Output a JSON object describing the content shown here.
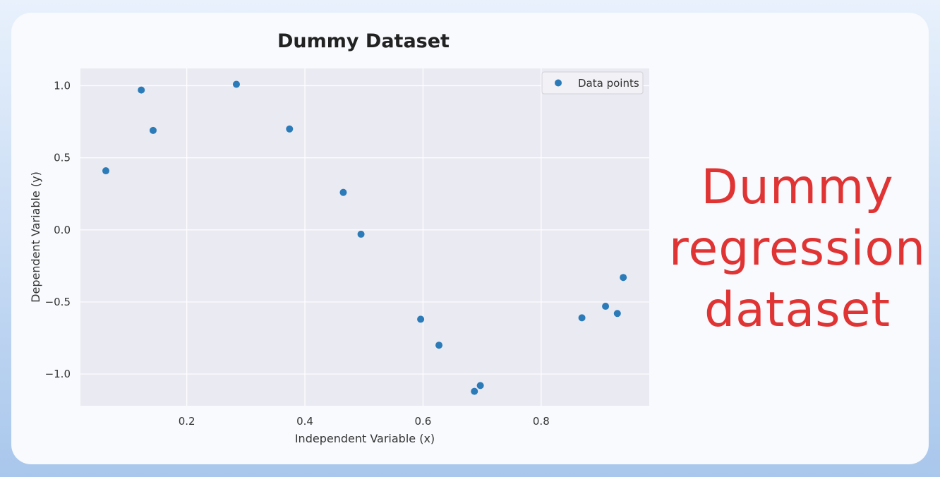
{
  "chart_data": {
    "type": "scatter",
    "title": "Dummy Dataset",
    "xlabel": "Independent Variable (x)",
    "ylabel": "Dependent Variable (y)",
    "xlim": [
      0.02,
      0.983
    ],
    "ylim": [
      -1.22,
      1.12
    ],
    "xticks": [
      0.2,
      0.4,
      0.6,
      0.8
    ],
    "xtick_labels": [
      "0.2",
      "0.4",
      "0.6",
      "0.8"
    ],
    "yticks": [
      1.0,
      0.5,
      0.0,
      -0.5,
      -1.0
    ],
    "ytick_labels": [
      "1.0",
      "0.5",
      "0.0",
      "−0.5",
      "−1.0"
    ],
    "grid": true,
    "legend": {
      "position": "top-right",
      "entries": [
        "Data points"
      ]
    },
    "series": [
      {
        "name": "Data points",
        "color": "#2b7bb9",
        "points": [
          [
            0.063,
            0.41
          ],
          [
            0.123,
            0.97
          ],
          [
            0.143,
            0.69
          ],
          [
            0.284,
            1.01
          ],
          [
            0.374,
            0.7
          ],
          [
            0.465,
            0.26
          ],
          [
            0.495,
            -0.03
          ],
          [
            0.596,
            -0.62
          ],
          [
            0.627,
            -0.8
          ],
          [
            0.687,
            -1.12
          ],
          [
            0.697,
            -1.08
          ],
          [
            0.869,
            -0.61
          ],
          [
            0.909,
            -0.53
          ],
          [
            0.929,
            -0.58
          ],
          [
            0.939,
            -0.33
          ]
        ]
      }
    ]
  },
  "annotation": {
    "lines": [
      "Dummy",
      "regression",
      "dataset"
    ],
    "color": "#e03434"
  }
}
